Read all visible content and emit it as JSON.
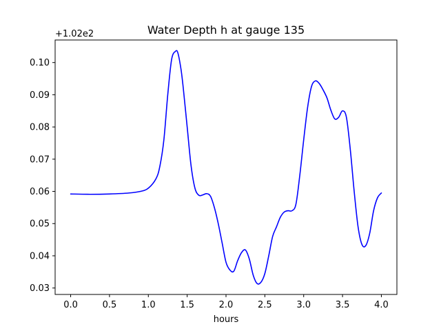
{
  "chart_data": {
    "type": "line",
    "title": "Water Depth h at gauge 135",
    "xlabel": "hours",
    "ylabel": "",
    "offset_label": "+1.02e2",
    "xlim": [
      -0.2,
      4.2
    ],
    "ylim": [
      0.028,
      0.107
    ],
    "grid": false,
    "x_ticks": [
      0.0,
      0.5,
      1.0,
      1.5,
      2.0,
      2.5,
      3.0,
      3.5,
      4.0
    ],
    "x_tick_labels": [
      "0.0",
      "0.5",
      "1.0",
      "1.5",
      "2.0",
      "2.5",
      "3.0",
      "3.5",
      "4.0"
    ],
    "y_ticks": [
      0.03,
      0.04,
      0.05,
      0.06,
      0.07,
      0.08,
      0.09,
      0.1
    ],
    "y_tick_labels": [
      "0.03",
      "0.04",
      "0.05",
      "0.06",
      "0.07",
      "0.08",
      "0.09",
      "0.10"
    ],
    "series": [
      {
        "color": "#0000ff",
        "x": [
          0.0,
          0.25,
          0.5,
          0.75,
          0.9,
          1.0,
          1.1,
          1.15,
          1.2,
          1.25,
          1.3,
          1.35,
          1.38,
          1.42,
          1.45,
          1.5,
          1.55,
          1.6,
          1.65,
          1.7,
          1.75,
          1.8,
          1.85,
          1.9,
          1.95,
          2.0,
          2.05,
          2.1,
          2.15,
          2.2,
          2.25,
          2.3,
          2.35,
          2.4,
          2.45,
          2.5,
          2.55,
          2.6,
          2.65,
          2.7,
          2.75,
          2.8,
          2.85,
          2.9,
          2.95,
          3.0,
          3.05,
          3.1,
          3.15,
          3.2,
          3.25,
          3.3,
          3.35,
          3.4,
          3.45,
          3.5,
          3.55,
          3.6,
          3.65,
          3.7,
          3.75,
          3.8,
          3.85,
          3.9,
          3.95,
          4.0
        ],
        "y": [
          0.0592,
          0.0591,
          0.0592,
          0.0595,
          0.06,
          0.061,
          0.064,
          0.068,
          0.076,
          0.09,
          0.101,
          0.1035,
          0.103,
          0.098,
          0.092,
          0.08,
          0.068,
          0.061,
          0.0588,
          0.0589,
          0.0593,
          0.0585,
          0.055,
          0.05,
          0.044,
          0.038,
          0.0356,
          0.0352,
          0.0385,
          0.041,
          0.0418,
          0.039,
          0.034,
          0.0314,
          0.0318,
          0.0345,
          0.04,
          0.046,
          0.049,
          0.052,
          0.0536,
          0.054,
          0.054,
          0.056,
          0.065,
          0.076,
          0.086,
          0.0925,
          0.0943,
          0.0935,
          0.0915,
          0.089,
          0.0852,
          0.0825,
          0.083,
          0.085,
          0.083,
          0.073,
          0.06,
          0.049,
          0.0435,
          0.0432,
          0.047,
          0.054,
          0.058,
          0.0595
        ]
      }
    ]
  }
}
